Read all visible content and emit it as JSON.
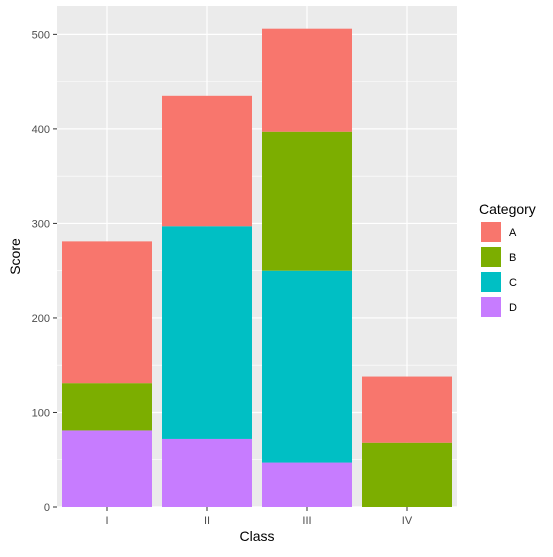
{
  "chart_data": {
    "type": "bar",
    "stacked": true,
    "categories": [
      "I",
      "II",
      "III",
      "IV"
    ],
    "series": [
      {
        "name": "A",
        "values": [
          150,
          138,
          109,
          70
        ]
      },
      {
        "name": "B",
        "values": [
          50,
          0,
          147,
          68
        ]
      },
      {
        "name": "C",
        "values": [
          0,
          225,
          203,
          0
        ]
      },
      {
        "name": "D",
        "values": [
          81,
          72,
          47,
          0
        ]
      }
    ],
    "xlabel": "Class",
    "ylabel": "Score",
    "ylim": [
      0,
      530
    ],
    "yticks": [
      0,
      100,
      200,
      300,
      400,
      500
    ],
    "grid": true,
    "panel_background": "#ebebeb",
    "grid_color": "#ffffff",
    "colors": {
      "A": "#f8766d",
      "B": "#7cae00",
      "C": "#00bfc4",
      "D": "#c77cff"
    },
    "legend": {
      "title": "Category",
      "position": "right",
      "order": [
        "A",
        "B",
        "C",
        "D"
      ]
    }
  }
}
